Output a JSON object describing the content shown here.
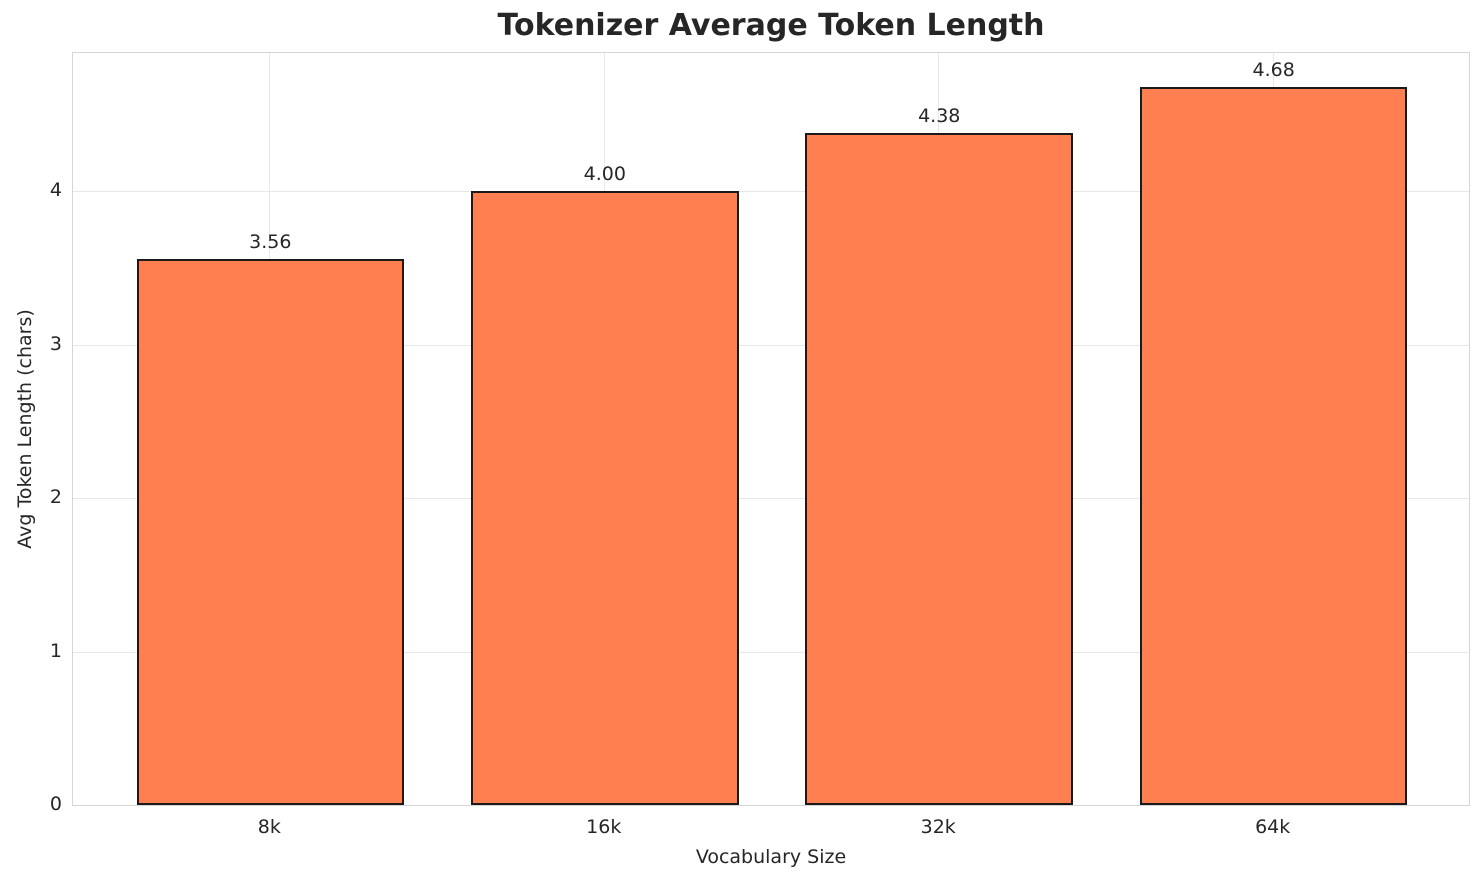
{
  "figure": {
    "title": "Tokenizer Average Token Length"
  },
  "chart_data": {
    "type": "bar",
    "title": "Tokenizer Average Token Length",
    "xlabel": "Vocabulary Size",
    "ylabel": "Avg Token Length (chars)",
    "categories": [
      "8k",
      "16k",
      "32k",
      "64k"
    ],
    "values": [
      3.56,
      4.0,
      4.38,
      4.68
    ],
    "value_labels": [
      "3.56",
      "4.00",
      "4.38",
      "4.68"
    ],
    "yticks": [
      0,
      1,
      2,
      3,
      4
    ],
    "ytick_labels": [
      "0",
      "1",
      "2",
      "3",
      "4"
    ],
    "ylim": [
      0,
      4.914
    ],
    "grid": true,
    "legend": "none",
    "colors": {
      "bar_fill": "#FF7F50",
      "bar_edge": "#1a1a1a",
      "grid": "#e7e7e7",
      "spine": "#d5d5d5",
      "text": "#262626",
      "background": "#ffffff"
    }
  }
}
